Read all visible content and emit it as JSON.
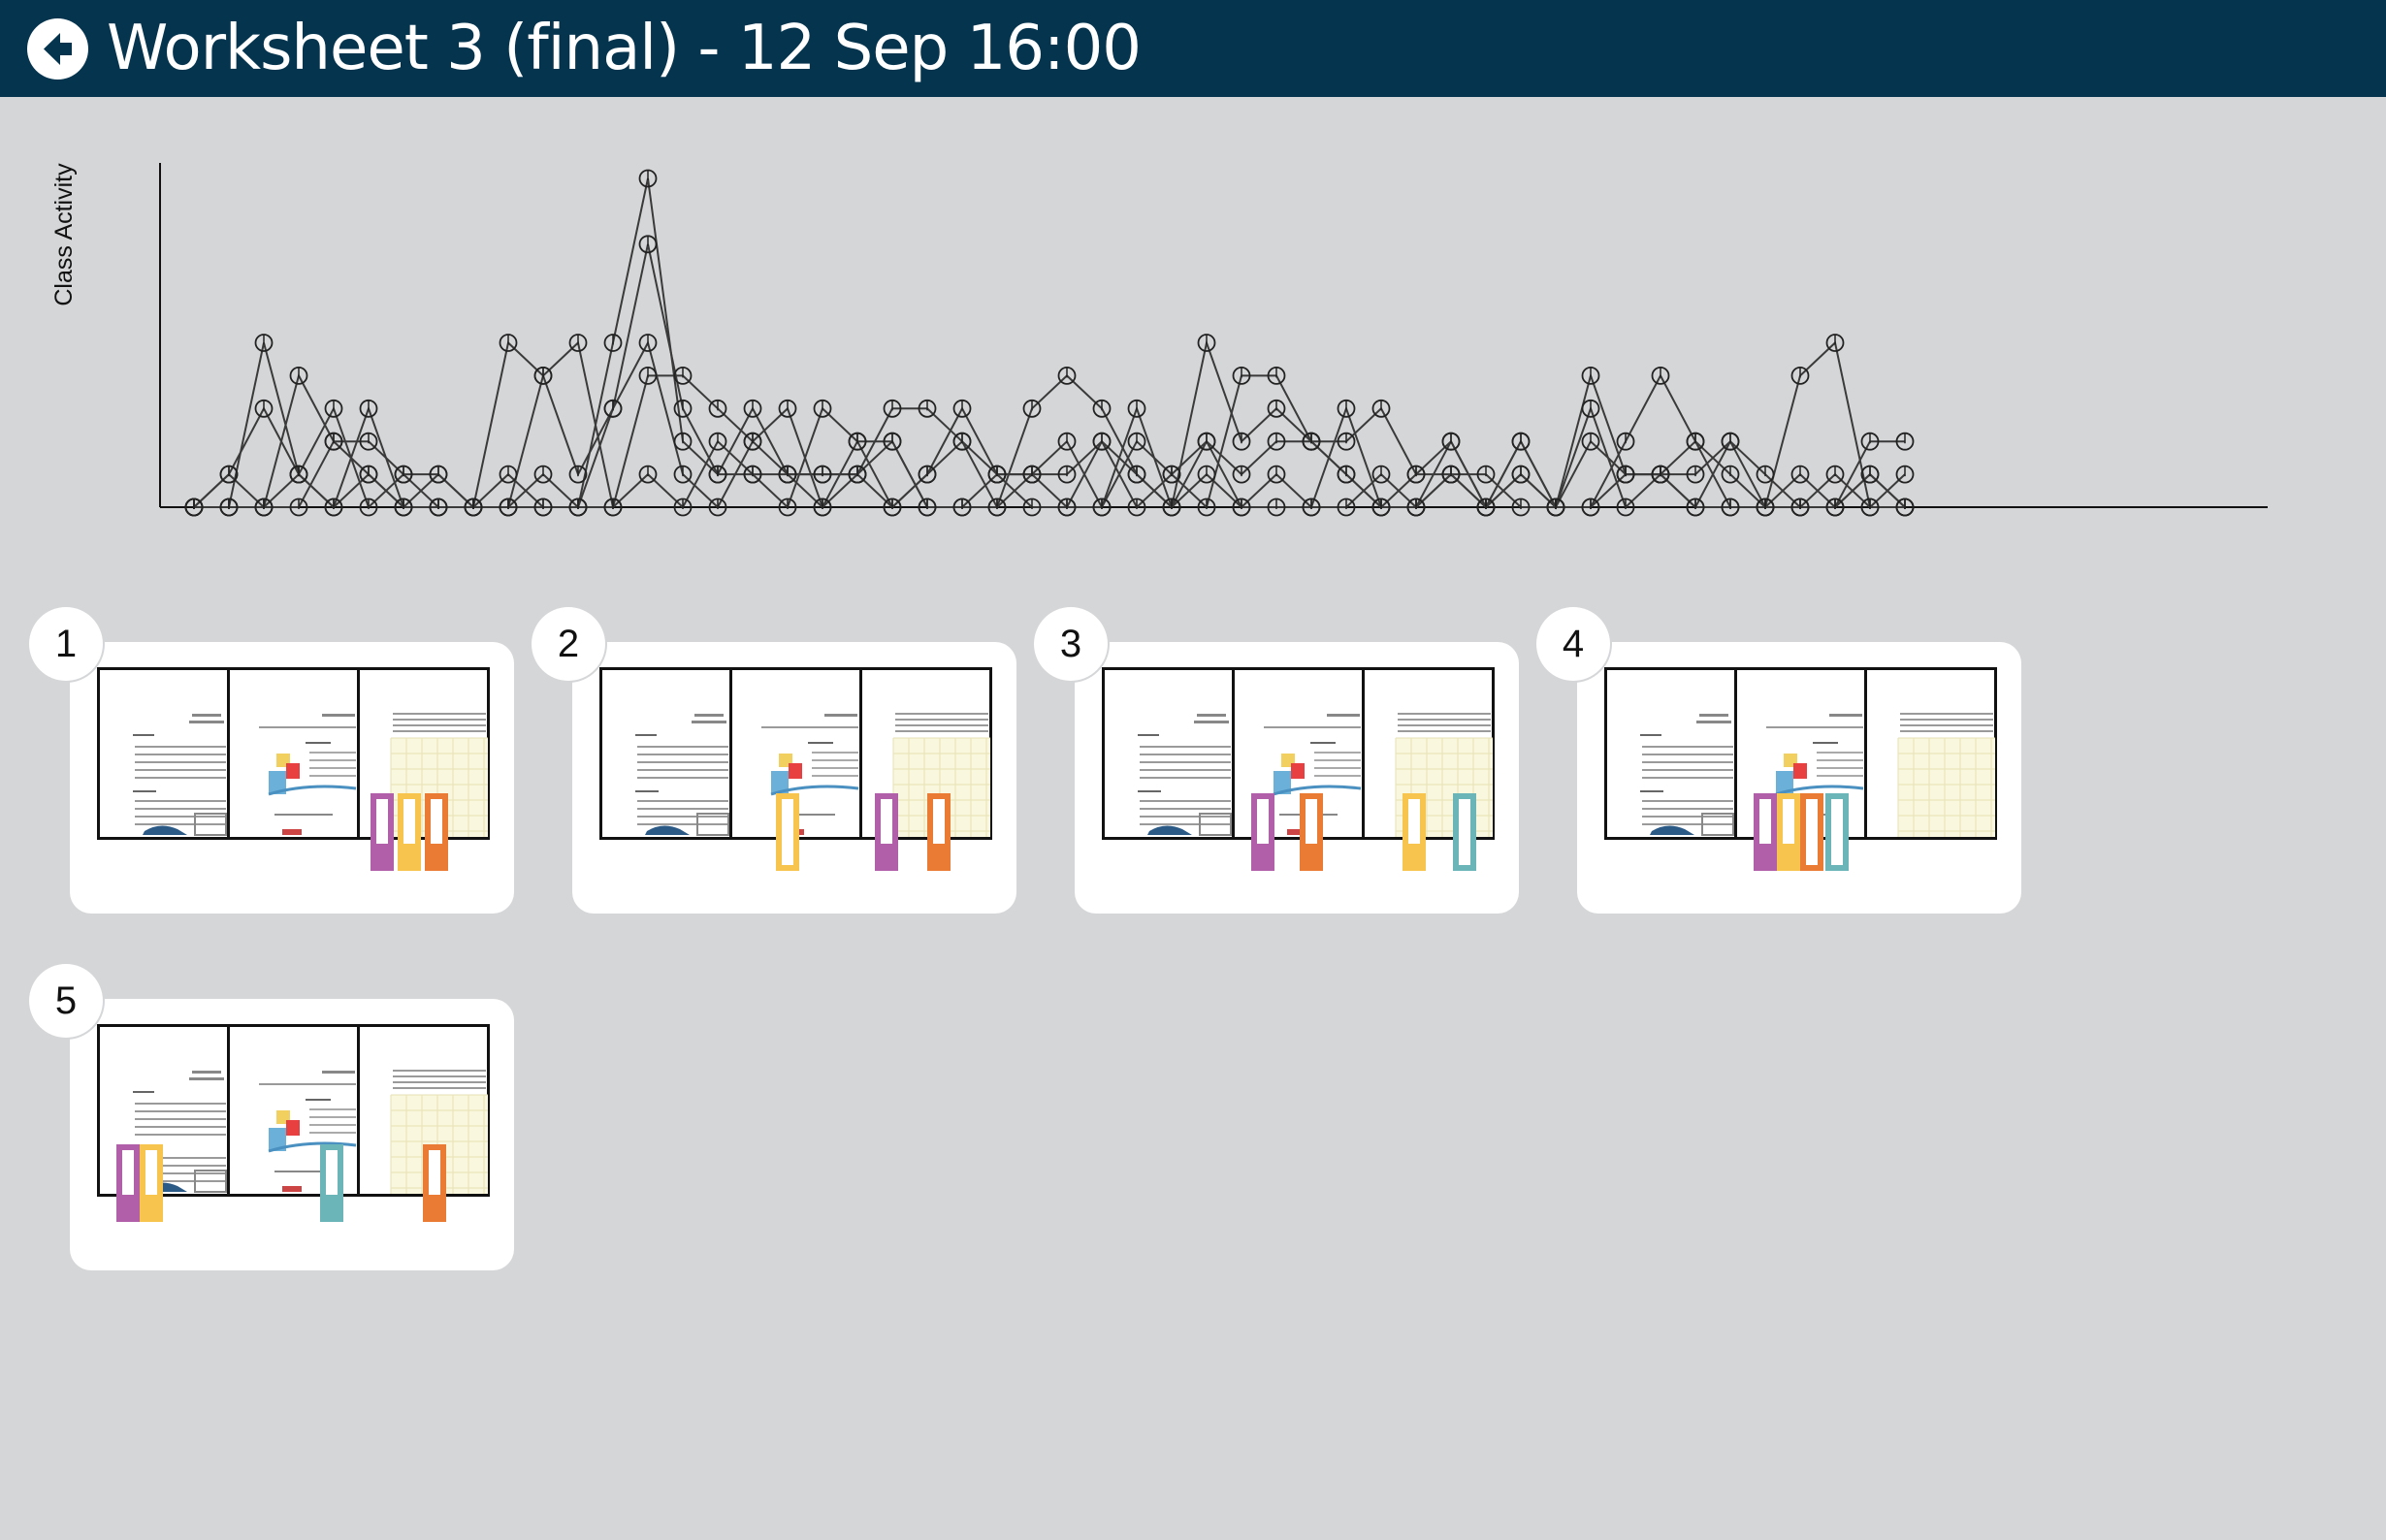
{
  "header": {
    "title": "Worksheet 3 (final) - 12 Sep 16:00",
    "back_icon": "arrow-left-circle-icon",
    "background": "#05344f"
  },
  "chart_data": {
    "type": "line",
    "ylabel": "Class Activity",
    "xlabel": "",
    "grid": false,
    "legend": "none",
    "x": [
      0,
      1,
      2,
      3,
      4,
      5,
      6,
      7,
      8,
      9,
      10,
      11,
      12,
      13,
      14,
      15,
      16,
      17,
      18,
      19,
      20,
      21,
      22,
      23,
      24,
      25,
      26,
      27,
      28,
      29,
      30,
      31,
      32,
      33,
      34,
      35,
      36,
      37,
      38,
      39,
      40,
      41,
      42,
      43,
      44,
      45,
      46,
      47,
      48,
      49
    ],
    "series": [
      {
        "values": [
          0,
          0,
          0,
          1,
          0,
          3,
          0,
          0,
          0,
          1,
          0,
          0,
          0,
          1,
          0,
          2,
          1,
          0,
          3,
          2,
          2,
          0,
          0,
          1,
          0,
          0,
          0,
          3,
          0,
          1,
          0,
          0,
          0,
          0,
          1,
          0,
          1,
          0,
          2,
          0,
          3,
          0,
          1,
          0,
          2,
          0,
          1,
          0,
          1,
          0
        ]
      },
      {
        "values": [
          0,
          1,
          0,
          0,
          2,
          2,
          1,
          0,
          0,
          0,
          1,
          0,
          3,
          5,
          1,
          0,
          2,
          1,
          1,
          1,
          0,
          1,
          3,
          1,
          1,
          2,
          0,
          2,
          1,
          0,
          4,
          4,
          2,
          1,
          0,
          1,
          2,
          0,
          1,
          0,
          4,
          1,
          1,
          0,
          0,
          0,
          4,
          5,
          0,
          1
        ]
      },
      {
        "values": [
          0,
          0,
          5,
          1,
          0,
          1,
          0,
          1,
          0,
          0,
          4,
          5,
          0,
          4,
          4,
          3,
          2,
          3,
          0,
          1,
          2,
          0,
          0,
          0,
          3,
          4,
          3,
          1,
          0,
          2,
          0,
          1,
          0,
          3,
          0,
          0,
          1,
          0,
          2,
          0,
          0,
          2,
          4,
          2,
          0,
          0,
          0,
          1,
          0,
          0
        ]
      },
      {
        "values": [
          0,
          1,
          3,
          1,
          3,
          0,
          1,
          1,
          0,
          0,
          0,
          0,
          5,
          10,
          2,
          1,
          3,
          1,
          1,
          1,
          3,
          3,
          2,
          0,
          1,
          1,
          2,
          0,
          1,
          2,
          1,
          2,
          2,
          1,
          0,
          0,
          2,
          0,
          1,
          0,
          2,
          1,
          1,
          2,
          1,
          0,
          0,
          0,
          2,
          2
        ]
      },
      {
        "values": [
          0,
          0,
          0,
          4,
          2,
          1,
          0,
          0,
          0,
          5,
          4,
          1,
          3,
          8,
          3,
          1,
          1,
          1,
          0,
          2,
          0,
          1,
          2,
          1,
          1,
          0,
          2,
          1,
          0,
          5,
          2,
          3,
          2,
          2,
          3,
          1,
          1,
          1,
          0,
          0,
          0,
          1,
          1,
          1,
          2,
          1,
          0,
          0,
          1,
          0
        ]
      }
    ],
    "colors": {
      "line": "#3a3a3a",
      "axis": "#111111"
    }
  },
  "worksheets": [
    {
      "number": "1",
      "markers": [
        {
          "color": "#b05fa8",
          "filled": true
        },
        {
          "color": "#f7c44e",
          "filled": true
        },
        {
          "color": "#e97b35",
          "filled": true
        }
      ]
    },
    {
      "number": "2",
      "markers": [
        {
          "color": "#f7c44e",
          "filled": false
        },
        {
          "color": "#b05fa8",
          "filled": true
        },
        {
          "color": "#e97b35",
          "filled": true
        }
      ]
    },
    {
      "number": "3",
      "markers": [
        {
          "color": "#b05fa8",
          "filled": true
        },
        {
          "color": "#e97b35",
          "filled": true
        },
        {
          "color": "#f7c44e",
          "filled": true
        },
        {
          "color": "#6bb5b8",
          "filled": false
        }
      ]
    },
    {
      "number": "4",
      "markers": [
        {
          "color": "#b05fa8",
          "filled": true
        },
        {
          "color": "#f7c44e",
          "filled": true
        },
        {
          "color": "#e97b35",
          "filled": false
        },
        {
          "color": "#6bb5b8",
          "filled": false
        }
      ]
    },
    {
      "number": "5",
      "markers": [
        {
          "color": "#b05fa8",
          "filled": true
        },
        {
          "color": "#f7c44e",
          "filled": true
        },
        {
          "color": "#6bb5b8",
          "filled": true
        },
        {
          "color": "#e97b35",
          "filled": true
        }
      ]
    }
  ],
  "student_colors": {
    "purple": "#b05fa8",
    "yellow": "#f7c44e",
    "orange": "#e97b35",
    "teal": "#6bb5b8"
  }
}
